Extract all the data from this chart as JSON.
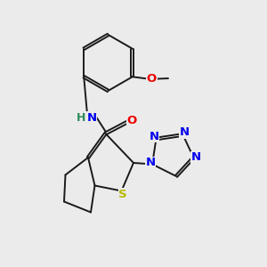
{
  "background_color": "#ebebeb",
  "bond_color": "#1a1a1a",
  "S_color": "#b8b800",
  "N_color": "#0000ee",
  "O_color": "#ee0000",
  "H_color": "#2e8b57",
  "figsize": [
    3.0,
    3.0
  ],
  "dpi": 100,
  "xlim": [
    0,
    10
  ],
  "ylim": [
    0,
    10
  ]
}
